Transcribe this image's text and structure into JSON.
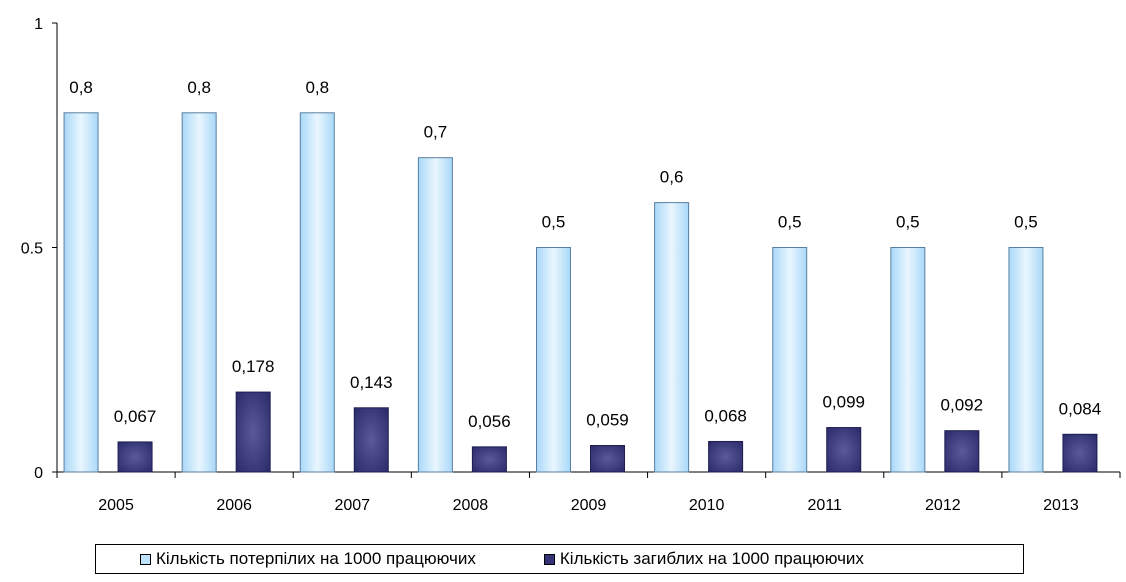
{
  "chart_data": {
    "type": "bar",
    "categories": [
      "2005",
      "2006",
      "2007",
      "2008",
      "2009",
      "2010",
      "2011",
      "2012",
      "2013"
    ],
    "series": [
      {
        "name": "Кількість потерпілих на 1000 працюючих",
        "values": [
          0.8,
          0.8,
          0.8,
          0.7,
          0.5,
          0.6,
          0.5,
          0.5,
          0.5
        ],
        "labels": [
          "0,8",
          "0,8",
          "0,8",
          "0,7",
          "0,5",
          "0,6",
          "0,5",
          "0,5",
          "0,5"
        ],
        "color": "#BFE3FB"
      },
      {
        "name": "Кількість загиблих на 1000 працюючих",
        "values": [
          0.067,
          0.178,
          0.143,
          0.056,
          0.059,
          0.068,
          0.099,
          0.092,
          0.084
        ],
        "labels": [
          "0,067",
          "0,178",
          "0,143",
          "0,056",
          "0,059",
          "0,068",
          "0,099",
          "0,092",
          "0,084"
        ],
        "color": "#343377"
      }
    ],
    "yticks": [
      "0",
      "0.5",
      "1"
    ],
    "ylim": [
      0,
      1
    ],
    "grid": false,
    "legend_position": "bottom"
  }
}
